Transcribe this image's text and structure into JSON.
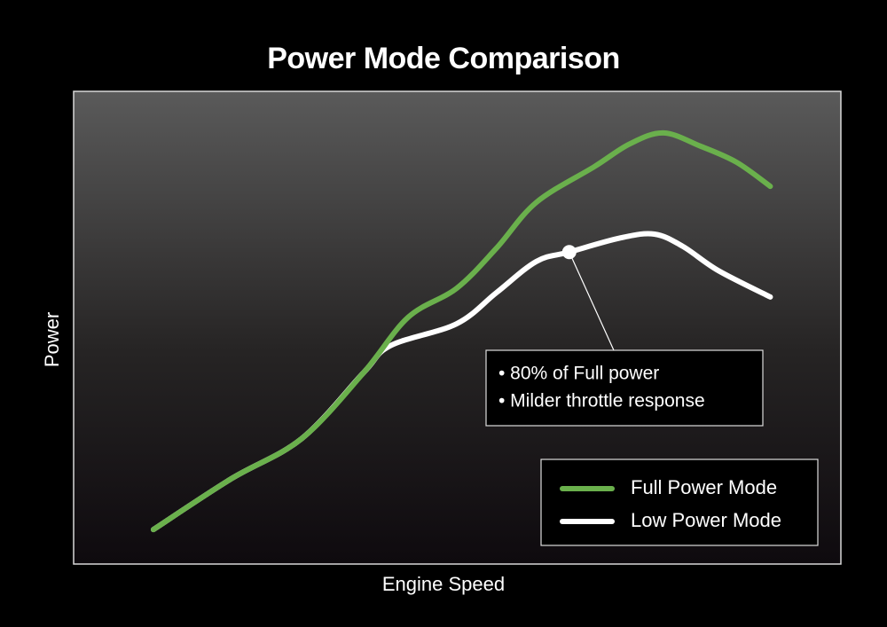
{
  "chart_data": {
    "type": "line",
    "title": "Power Mode Comparison",
    "x_label": "Engine Speed",
    "y_label": "Power",
    "xlim": [
      0,
      100
    ],
    "ylim": [
      0,
      100
    ],
    "series": [
      {
        "name": "Full Power Mode",
        "color": "#6ab04c",
        "x": [
          10.4,
          20.5,
          29.7,
          37.8,
          43.6,
          49.9,
          55.1,
          60.3,
          67.9,
          72.5,
          76.9,
          81.7,
          86.4,
          90.8
        ],
        "values": [
          7.3,
          18.0,
          26.5,
          40.5,
          52.2,
          58.3,
          66.8,
          76.5,
          84.1,
          88.9,
          91.2,
          88.4,
          85.0,
          79.9
        ]
      },
      {
        "name": "Low Power Mode",
        "color": "#ffffff",
        "x": [
          10.4,
          20.5,
          29.7,
          37.8,
          41.3,
          49.9,
          55.1,
          60.3,
          64.6,
          71.3,
          75.7,
          79.4,
          84.0,
          90.8
        ],
        "values": [
          7.3,
          18.0,
          26.5,
          40.5,
          46.2,
          50.8,
          57.4,
          64.0,
          66.0,
          69.0,
          69.8,
          67.2,
          62.1,
          56.5
        ]
      }
    ],
    "annotation": {
      "x": 64.6,
      "y": 66.0,
      "lines": [
        "• 80% of Full power",
        "• Milder throttle response"
      ]
    }
  }
}
